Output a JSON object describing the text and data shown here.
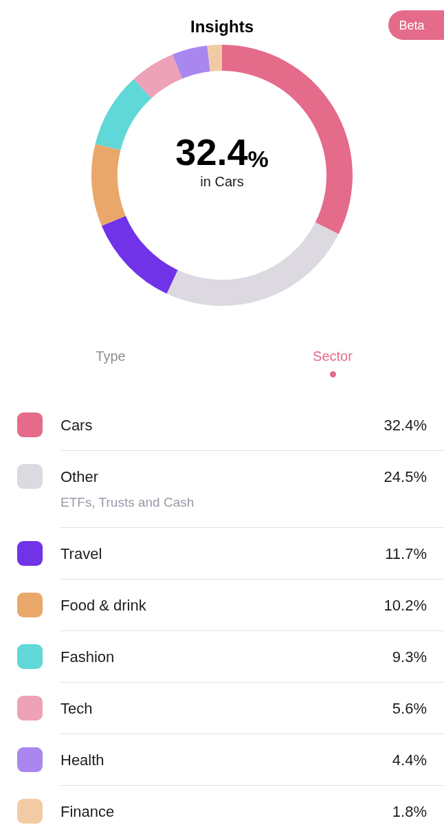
{
  "chart_data": {
    "type": "donut",
    "title": "Insights",
    "categories": [
      "Cars",
      "Other",
      "Travel",
      "Food & drink",
      "Fashion",
      "Tech",
      "Health",
      "Finance"
    ],
    "values": [
      32.4,
      24.5,
      11.7,
      10.2,
      9.3,
      5.6,
      4.4,
      1.8
    ],
    "colors": [
      "#e56b8b",
      "#dcd9e0",
      "#7033e8",
      "#e9a86a",
      "#5fd8d7",
      "#eea2b7",
      "#a987ef",
      "#f2cba5"
    ],
    "value_labels": [
      "32.4%",
      "24.5%",
      "11.7%",
      "10.2%",
      "9.3%",
      "5.6%",
      "4.4%",
      "1.8%"
    ],
    "legend": "bottom",
    "annotations": [
      "Beta",
      "Type",
      "Sector",
      "32.4%",
      "in Cars",
      "ETFs, Trusts and Cash"
    ]
  }
}
